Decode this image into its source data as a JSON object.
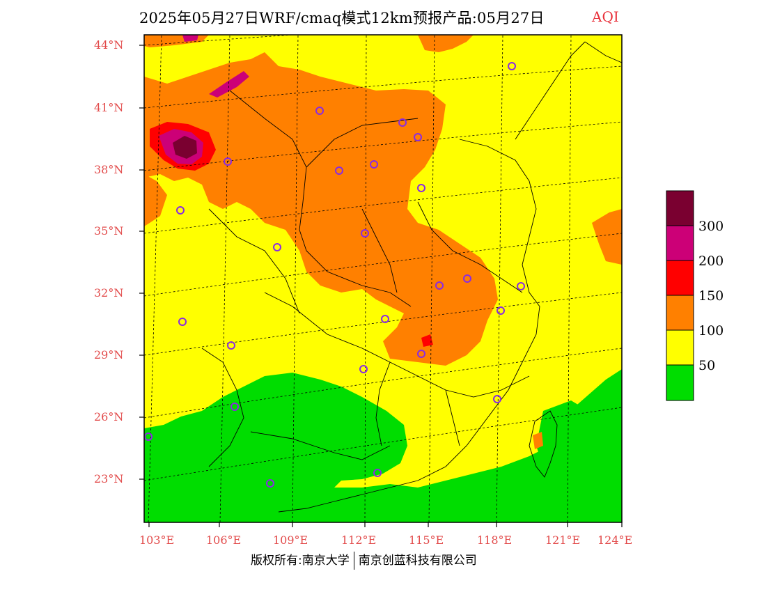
{
  "header": {
    "title": "2025年05月27日WRF/cmaq模式12km预报产品:05月27日",
    "indicator": "AQI"
  },
  "axes": {
    "lat_labels": [
      "44°N",
      "41°N",
      "38°N",
      "35°N",
      "32°N",
      "29°N",
      "26°N",
      "23°N"
    ],
    "lon_labels": [
      "103°E",
      "106°E",
      "109°E",
      "112°E",
      "115°E",
      "118°E",
      "121°E",
      "124°E"
    ]
  },
  "legend": {
    "labels": [
      "300",
      "200",
      "150",
      "100",
      "50"
    ],
    "colors": [
      "#7a0030",
      "#cc0077",
      "#ff0000",
      "#ff8000",
      "#ffff00",
      "#00dd00"
    ]
  },
  "footer": {
    "copyright": "版权所有:南京大学",
    "company": "南京创蓝科技有限公司"
  },
  "palette": {
    "good": "#00dd00",
    "moderate": "#ffff00",
    "sensitive": "#ff8000",
    "unhealthy": "#ff0000",
    "very_unhealthy": "#cc0077",
    "hazardous": "#7a0030",
    "label_red": "#e24a4a",
    "station_ring": "#8a2be2"
  }
}
